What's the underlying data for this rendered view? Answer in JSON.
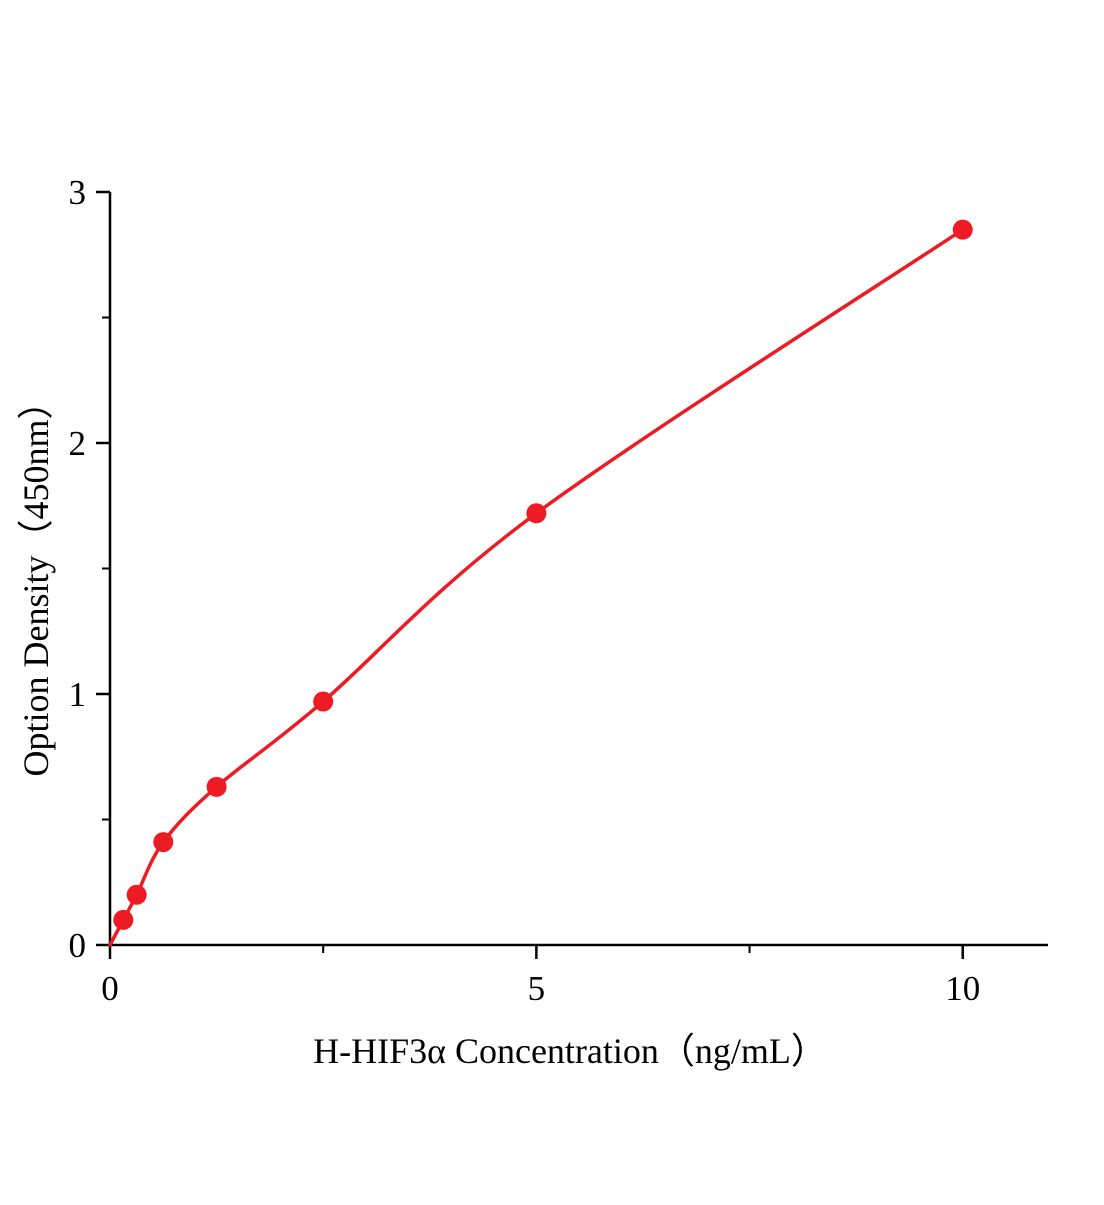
{
  "figure": {
    "background_color": "#ffffff"
  },
  "chart_data": {
    "type": "scatter",
    "title": "",
    "xlabel": "H-HIF3α Concentration（ng/mL）",
    "ylabel": "Option Density（450nm）",
    "x": [
      0.156,
      0.3125,
      0.625,
      1.25,
      2.5,
      5,
      10
    ],
    "y": [
      0.1,
      0.2,
      0.41,
      0.63,
      0.97,
      1.72,
      2.85
    ],
    "curve_origin": {
      "x": 0,
      "y": 0
    },
    "xlim": [
      0,
      11
    ],
    "ylim": [
      0,
      3
    ],
    "x_major_ticks": [
      0,
      5,
      10
    ],
    "x_major_tick_labels": [
      "0",
      "5",
      "10"
    ],
    "x_minor_ticks": [
      2.5,
      7.5
    ],
    "y_major_ticks": [
      0,
      1,
      2,
      3
    ],
    "y_major_tick_labels": [
      "0",
      "1",
      "2",
      "3"
    ],
    "y_minor_ticks": [
      0.5,
      1.5,
      2.5
    ],
    "grid": false,
    "legend": false,
    "line_color": "#ed1c24",
    "marker_color": "#ed1c24",
    "axis_color": "#000000",
    "marker_shape": "circle"
  }
}
